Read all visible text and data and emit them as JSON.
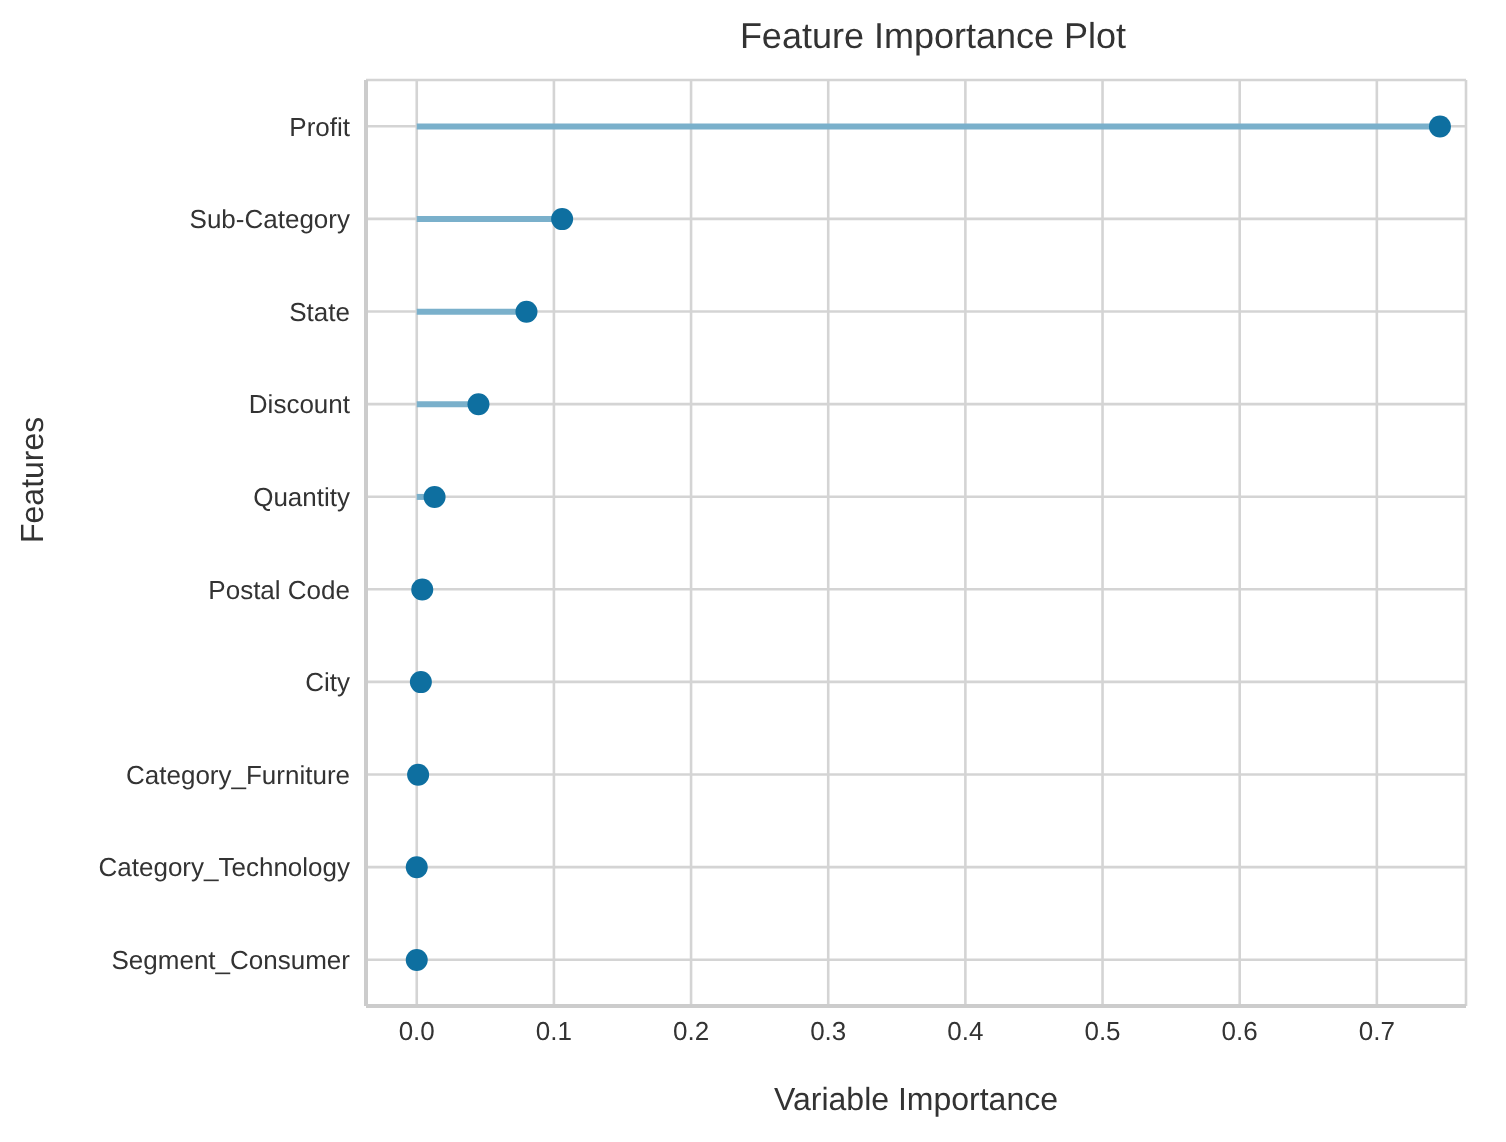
{
  "chart_data": {
    "type": "lollipop",
    "title": "Feature Importance Plot",
    "xlabel": "Variable Importance",
    "ylabel": "Features",
    "orientation": "horizontal",
    "categories": [
      "Profit",
      "Sub-Category",
      "State",
      "Discount",
      "Quantity",
      "Postal Code",
      "City",
      "Category_Furniture",
      "Category_Technology",
      "Segment_Consumer"
    ],
    "series": [
      {
        "color": "#0e6fa0",
        "values": [
          0.746,
          0.106,
          0.08,
          0.045,
          0.013,
          0.004,
          0.003,
          0.001,
          0,
          0
        ]
      }
    ],
    "xlim": [
      -0.037,
      0.765
    ],
    "xticks": [
      {
        "value": 0,
        "label": "0.0"
      },
      0.1,
      0.2,
      0.3,
      0.4,
      0.5,
      0.6,
      0.7
    ],
    "grid": true,
    "legend": false
  }
}
